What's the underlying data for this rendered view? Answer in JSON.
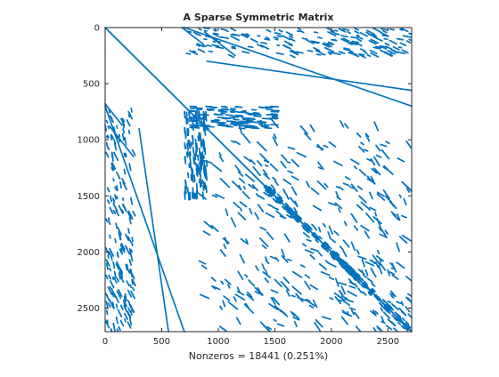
{
  "chart_data": {
    "type": "scatter",
    "title": "A Sparse Symmetric Matrix",
    "xlabel": "Nonzeros = 18441 (0.251%)",
    "ylabel": "",
    "matrix_size": 2710,
    "nonzeros": 18441,
    "density_percent": 0.251,
    "xlim": [
      0,
      2710
    ],
    "ylim": [
      2710,
      0
    ],
    "x_ticks": [
      0,
      500,
      1000,
      1500,
      2000,
      2500
    ],
    "x_tick_labels": [
      "0",
      "500",
      "1000",
      "1500",
      "2000",
      "2500"
    ],
    "y_ticks": [
      0,
      500,
      1000,
      1500,
      2000,
      2500
    ],
    "y_tick_labels": [
      "0",
      "500",
      "1000",
      "1500",
      "2000",
      "2500"
    ],
    "grid": false,
    "marker_color": "#0072BD",
    "axis_color": "#262626",
    "structure": {
      "main_diagonal": [
        [
          0,
          0
        ],
        [
          2710,
          2710
        ]
      ],
      "off_diagonal_bands": [
        [
          [
            700,
            0
          ],
          [
            2710,
            700
          ]
        ],
        [
          [
            900,
            300
          ],
          [
            2710,
            560
          ]
        ],
        [
          [
            680,
            0
          ],
          [
            870,
            150
          ]
        ],
        [
          [
            0,
            700
          ],
          [
            700,
            2710
          ]
        ],
        [
          [
            300,
            900
          ],
          [
            560,
            2710
          ]
        ],
        [
          [
            0,
            680
          ],
          [
            150,
            870
          ]
        ],
        [
          [
            880,
            40
          ],
          [
            1150,
            250
          ]
        ],
        [
          [
            40,
            880
          ],
          [
            250,
            1150
          ]
        ]
      ],
      "dense_blocks": [
        [
          700,
          0,
          2710,
          260
        ],
        [
          0,
          700,
          260,
          2710
        ],
        [
          700,
          700,
          900,
          1500
        ],
        [
          1000,
          1400,
          2710,
          2710
        ]
      ]
    }
  }
}
